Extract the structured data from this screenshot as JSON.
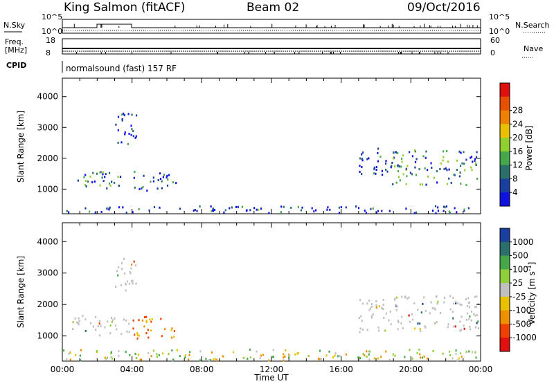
{
  "header": {
    "station": "King Salmon (fitACF)",
    "beam": "Beam 02",
    "date": "09/Oct/2016"
  },
  "status_panels": {
    "nsky_label": "N.Sky",
    "nsky_ticks": [
      "10^5",
      "10^0"
    ],
    "nsearch_label": "N.Search",
    "nsearch_ticks": [
      "10^5",
      "10^0"
    ],
    "freq_label_line1": "Freq.",
    "freq_label_line2": "[MHz]",
    "freq_ticks": [
      "18",
      "8"
    ],
    "nave_label": "Nave",
    "nave_ticks": [
      "60",
      "0"
    ],
    "cpid_label": "CPID",
    "cpid_text": "normalsound (fast) 157 RF"
  },
  "colors": {
    "power_scale": [
      "#1010e0",
      "#1a3fa0",
      "#2a6f6a",
      "#44a84a",
      "#90cf30",
      "#e8c000",
      "#f08000",
      "#e85000",
      "#e01010"
    ],
    "velocity_scale": [
      "#1a3fa0",
      "#2a6f6a",
      "#44a84a",
      "#8fd03a",
      "#c0c0c0",
      "#e8c000",
      "#f09000",
      "#f04000",
      "#e01010"
    ]
  },
  "chart_data": [
    {
      "type": "heatmap",
      "panel": "power",
      "xlabel": "",
      "ylabel": "Slant Range [km]",
      "ylim": [
        200,
        4600
      ],
      "x_range_hours": [
        0,
        24
      ],
      "y_ticks": [
        "1000",
        "2000",
        "3000",
        "4000"
      ],
      "colorbar": {
        "label": "Power [dB]",
        "ticks": [
          "4",
          "8",
          "12",
          "16",
          "20",
          "24",
          "28"
        ]
      },
      "regions": [
        {
          "t0": 0.5,
          "t1": 3.8,
          "r0": 1050,
          "r1": 1600
        },
        {
          "t0": 3.0,
          "t1": 4.3,
          "r0": 2400,
          "r1": 3500
        },
        {
          "t0": 4.0,
          "t1": 6.5,
          "r0": 980,
          "r1": 1600
        },
        {
          "t0": 0.0,
          "t1": 24.0,
          "r0": 250,
          "r1": 480
        },
        {
          "t0": 17.0,
          "t1": 18.8,
          "r0": 1500,
          "r1": 2400
        },
        {
          "t0": 18.8,
          "t1": 23.9,
          "r0": 1150,
          "r1": 2300
        }
      ]
    },
    {
      "type": "heatmap",
      "panel": "velocity",
      "xlabel": "Time UT",
      "ylabel": "Slant Range [km]",
      "ylim": [
        200,
        4600
      ],
      "x_range_hours": [
        0,
        24
      ],
      "x_ticks": [
        "00:00",
        "04:00",
        "08:00",
        "12:00",
        "16:00",
        "20:00",
        "00:00"
      ],
      "y_ticks": [
        "1000",
        "2000",
        "3000",
        "4000"
      ],
      "colorbar": {
        "label": "Velocity [m s",
        "label_sup": "-1",
        "label_end": "]",
        "ticks": [
          "1000",
          "500",
          "100",
          "25",
          "-25",
          "-100",
          "-500",
          "-1000"
        ]
      },
      "regions": [
        {
          "t0": 0.5,
          "t1": 3.8,
          "r0": 1050,
          "r1": 1700
        },
        {
          "t0": 3.0,
          "t1": 4.3,
          "r0": 2400,
          "r1": 3500
        },
        {
          "t0": 4.0,
          "t1": 6.5,
          "r0": 950,
          "r1": 1650
        },
        {
          "t0": 0.0,
          "t1": 24.0,
          "r0": 250,
          "r1": 600
        },
        {
          "t0": 17.0,
          "t1": 18.8,
          "r0": 1100,
          "r1": 2200
        },
        {
          "t0": 18.8,
          "t1": 23.9,
          "r0": 1150,
          "r1": 2300
        }
      ]
    }
  ]
}
